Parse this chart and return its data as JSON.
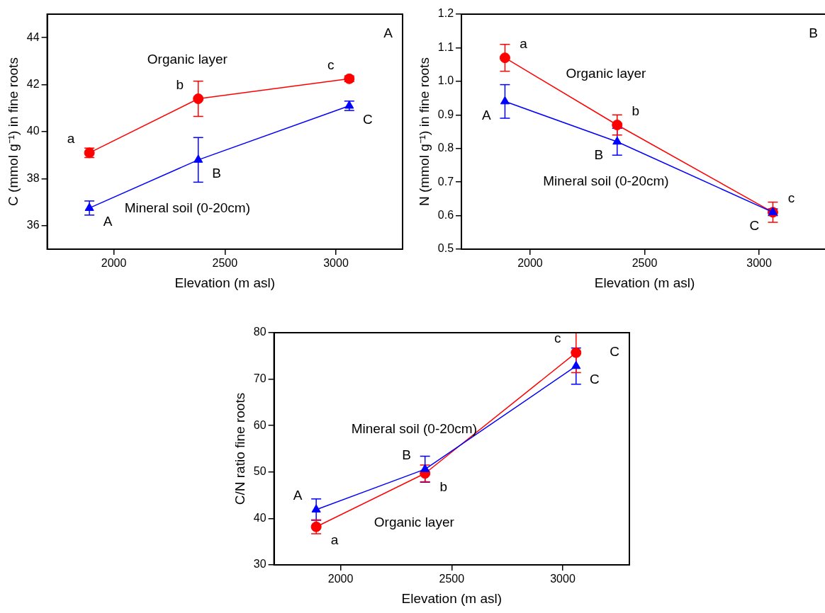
{
  "chart_data": [
    {
      "type": "line",
      "xlabel": "Elevation (m asl)",
      "ylabel": "C (mmol g⁻¹) in fine roots",
      "x": [
        1890,
        2380,
        3060
      ],
      "xlim": [
        1700,
        3300
      ],
      "xticks": [
        2000,
        2500,
        3000
      ],
      "ylim": [
        35,
        45
      ],
      "yticks": [
        36,
        38,
        40,
        42,
        44
      ],
      "grid": false,
      "legend": false,
      "series": [
        {
          "name": "Organic layer",
          "color": "#ff0000",
          "marker": "circle",
          "values": [
            39.1,
            41.4,
            42.25
          ],
          "errors": [
            0.2,
            0.75,
            0.12
          ]
        },
        {
          "name": "Mineral soil (0-20cm)",
          "color": "#0000ff",
          "marker": "triangle",
          "values": [
            36.75,
            38.8,
            41.1
          ],
          "errors": [
            0.3,
            0.95,
            0.2
          ]
        }
      ],
      "annotations": [
        "A",
        {
          "text": "a",
          "x": 1890,
          "y": 39.1
        },
        {
          "text": "b",
          "x": 2380,
          "y": 41.4
        },
        {
          "text": "c",
          "x": 3060,
          "y": 42.25
        },
        {
          "text": "A",
          "x": 1890,
          "y": 36.75
        },
        {
          "text": "B",
          "x": 2380,
          "y": 38.8
        },
        {
          "text": "C",
          "x": 3060,
          "y": 41.1
        }
      ]
    },
    {
      "type": "line",
      "xlabel": "Elevation (m asl)",
      "ylabel": "N (mmol g⁻¹) in fine roots",
      "x": [
        1890,
        2380,
        3060
      ],
      "xlim": [
        1700,
        3300
      ],
      "xticks": [
        2000,
        2500,
        3000
      ],
      "ylim": [
        0.5,
        1.2
      ],
      "yticks": [
        0.5,
        0.6,
        0.7,
        0.8,
        0.9,
        {
          "value": 1.0,
          "label": "1.0"
        },
        1.1,
        1.2
      ],
      "grid": false,
      "legend": false,
      "series": [
        {
          "name": "Mineral soil (0-20cm)",
          "color": "#0000ff",
          "marker": "triangle",
          "values": [
            0.94,
            0.82,
            0.61
          ],
          "errors": [
            0.05,
            0.04,
            0.01
          ]
        },
        {
          "name": "Organic layer",
          "color": "#ff0000",
          "marker": "circle",
          "values": [
            1.07,
            0.87,
            0.61
          ],
          "errors": [
            0.04,
            0.03,
            0.03
          ]
        }
      ],
      "annotations": [
        "B",
        {
          "text": "a",
          "x": 1890,
          "y": 1.07
        },
        {
          "text": "b",
          "x": 2380,
          "y": 0.87
        },
        {
          "text": "c",
          "x": 3060,
          "y": 0.61
        },
        {
          "text": "A",
          "x": 1890,
          "y": 0.94
        },
        {
          "text": "B",
          "x": 2380,
          "y": 0.82
        },
        {
          "text": "C",
          "x": 3060,
          "y": 0.61
        }
      ]
    },
    {
      "type": "line",
      "xlabel": "Elevation (m asl)",
      "ylabel": "C/N ratio fine roots",
      "x": [
        1890,
        2380,
        3060
      ],
      "xlim": [
        1700,
        3300
      ],
      "xticks": [
        2000,
        2500,
        3000
      ],
      "ylim": [
        30,
        80
      ],
      "yticks": [
        30,
        40,
        50,
        60,
        70,
        80
      ],
      "grid": false,
      "legend": false,
      "series": [
        {
          "name": "Mineral soil (0-20cm)",
          "color": "#0000ff",
          "marker": "triangle",
          "values": [
            41.9,
            50.6,
            72.8
          ],
          "errors": [
            2.3,
            2.8,
            3.9
          ]
        },
        {
          "name": "Organic layer",
          "color": "#ff0000",
          "marker": "circle",
          "values": [
            38.2,
            49.7,
            75.7
          ],
          "errors": [
            1.5,
            1.8,
            4.3
          ]
        }
      ],
      "annotations": [
        "C",
        {
          "text": "a",
          "x": 1890,
          "y": 38.2
        },
        {
          "text": "b",
          "x": 2380,
          "y": 49.7
        },
        {
          "text": "c",
          "x": 3060,
          "y": 75.7
        },
        {
          "text": "A",
          "x": 1890,
          "y": 41.9
        },
        {
          "text": "B",
          "x": 2380,
          "y": 50.6
        },
        {
          "text": "C",
          "x": 3060,
          "y": 72.8
        }
      ]
    }
  ]
}
